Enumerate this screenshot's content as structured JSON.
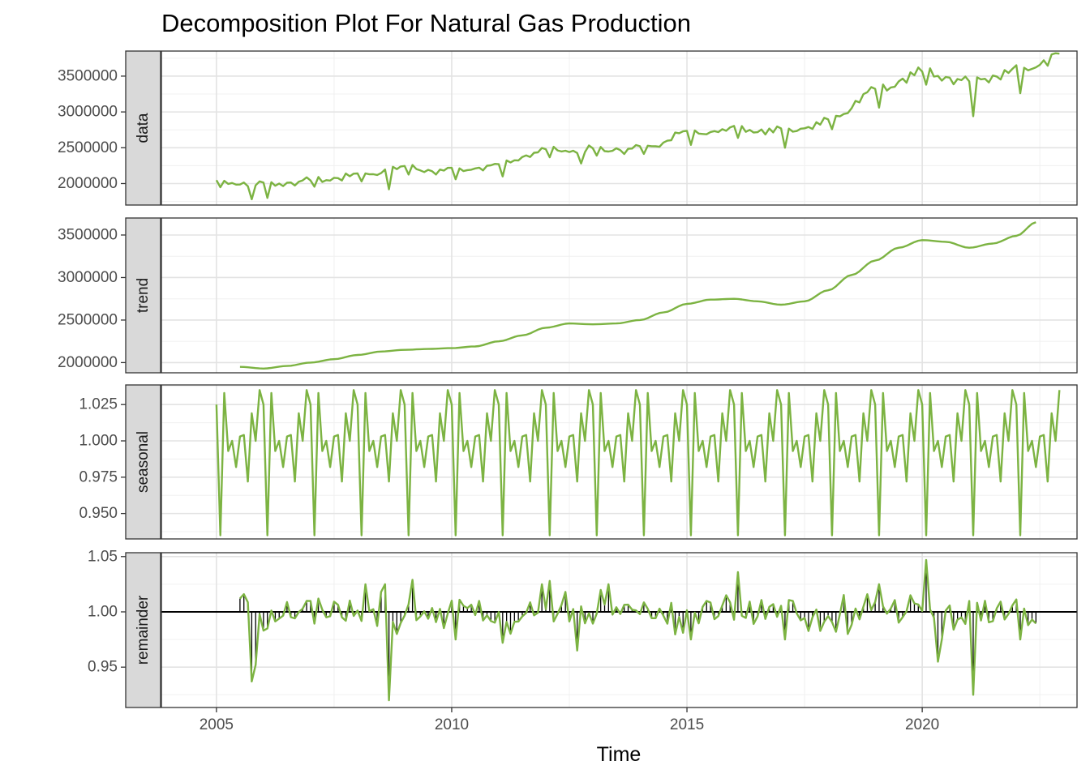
{
  "chart_data": {
    "type": "line",
    "title": "Decomposition Plot For Natural Gas Production",
    "xlabel": "Time",
    "x_range": [
      2003.83,
      2023.29
    ],
    "x_ticks": [
      2005,
      2010,
      2015,
      2020
    ],
    "x_tick_labels": [
      "2005",
      "2010",
      "2015",
      "2020"
    ],
    "grid": true,
    "line_color": "#7cb342",
    "panels": [
      {
        "name": "data",
        "ylim": [
          1700000,
          3850000
        ],
        "y_ticks": [
          2000000,
          2500000,
          3000000,
          3500000
        ],
        "y_tick_labels": [
          "2000000",
          "2500000",
          "3000000",
          "3500000"
        ],
        "x_start": 2005.0,
        "anchors": [
          [
            2005.0,
            2020000
          ],
          [
            2006.0,
            1980000
          ],
          [
            2007.0,
            2030000
          ],
          [
            2008.0,
            2110000
          ],
          [
            2009.0,
            2210000
          ],
          [
            2010.0,
            2170000
          ],
          [
            2011.0,
            2250000
          ],
          [
            2012.0,
            2460000
          ],
          [
            2013.0,
            2460000
          ],
          [
            2014.0,
            2480000
          ],
          [
            2015.0,
            2700000
          ],
          [
            2016.0,
            2760000
          ],
          [
            2017.0,
            2720000
          ],
          [
            2018.0,
            2860000
          ],
          [
            2019.0,
            3280000
          ],
          [
            2020.0,
            3520000
          ],
          [
            2021.0,
            3410000
          ],
          [
            2022.0,
            3570000
          ],
          [
            2022.92,
            3750000
          ]
        ],
        "seasonal_amp": 0.035,
        "dips": [
          [
            2005.75,
            1780000
          ],
          [
            2006.1,
            1800000
          ],
          [
            2008.65,
            1920000
          ],
          [
            2010.1,
            2060000
          ],
          [
            2011.1,
            2100000
          ],
          [
            2012.75,
            2280000
          ],
          [
            2015.1,
            2540000
          ],
          [
            2017.05,
            2500000
          ],
          [
            2019.1,
            3060000
          ],
          [
            2020.1,
            3380000
          ],
          [
            2021.1,
            2940000
          ],
          [
            2022.1,
            3260000
          ]
        ],
        "peaks": [
          [
            2019.95,
            3620000
          ],
          [
            2022.85,
            3820000
          ]
        ]
      },
      {
        "name": "trend",
        "ylim": [
          1880000,
          3700000
        ],
        "y_ticks": [
          2000000,
          2500000,
          3000000,
          3500000
        ],
        "y_tick_labels": [
          "2000000",
          "2500000",
          "3000000",
          "3500000"
        ],
        "x_start": 2005.5,
        "anchors": [
          [
            2005.5,
            1950000
          ],
          [
            2006.0,
            1930000
          ],
          [
            2006.5,
            1960000
          ],
          [
            2007.0,
            2000000
          ],
          [
            2007.5,
            2040000
          ],
          [
            2008.0,
            2090000
          ],
          [
            2008.5,
            2130000
          ],
          [
            2009.0,
            2150000
          ],
          [
            2009.5,
            2160000
          ],
          [
            2010.0,
            2170000
          ],
          [
            2010.5,
            2190000
          ],
          [
            2011.0,
            2250000
          ],
          [
            2011.5,
            2320000
          ],
          [
            2012.0,
            2410000
          ],
          [
            2012.5,
            2460000
          ],
          [
            2013.0,
            2450000
          ],
          [
            2013.5,
            2460000
          ],
          [
            2014.0,
            2500000
          ],
          [
            2014.5,
            2590000
          ],
          [
            2015.0,
            2690000
          ],
          [
            2015.5,
            2740000
          ],
          [
            2016.0,
            2750000
          ],
          [
            2016.5,
            2720000
          ],
          [
            2017.0,
            2680000
          ],
          [
            2017.5,
            2720000
          ],
          [
            2018.0,
            2850000
          ],
          [
            2018.5,
            3030000
          ],
          [
            2019.0,
            3200000
          ],
          [
            2019.5,
            3350000
          ],
          [
            2020.0,
            3440000
          ],
          [
            2020.5,
            3420000
          ],
          [
            2021.0,
            3350000
          ],
          [
            2021.5,
            3400000
          ],
          [
            2022.0,
            3490000
          ],
          [
            2022.42,
            3650000
          ]
        ]
      },
      {
        "name": "seasonal",
        "ylim": [
          0.9325,
          1.0385
        ],
        "y_ticks": [
          0.95,
          0.975,
          1.0,
          1.025
        ],
        "y_tick_labels": [
          "0.950",
          "0.975",
          "1.000",
          "1.025"
        ],
        "x_start": 2005.0,
        "x_end": 2022.92,
        "monthly": [
          1.025,
          0.935,
          1.033,
          0.993,
          1.0,
          0.982,
          1.003,
          1.004,
          0.972,
          1.019,
          1.0,
          1.035
        ]
      },
      {
        "name": "remainder",
        "ylim": [
          0.9135,
          1.0535
        ],
        "y_ticks": [
          0.95,
          1.0,
          1.05
        ],
        "y_tick_labels": [
          "0.95",
          "1.00",
          "1.05"
        ],
        "baseline": 1.0,
        "x_start": 2005.5,
        "x_end": 2022.42,
        "spikes": [
          [
            2005.5,
            1.012
          ],
          [
            2005.58,
            1.016
          ],
          [
            2005.75,
            0.937
          ],
          [
            2005.85,
            0.952
          ],
          [
            2006.1,
            0.985
          ],
          [
            2007.15,
            1.012
          ],
          [
            2008.15,
            1.025
          ],
          [
            2008.5,
            1.018
          ],
          [
            2008.62,
            1.025
          ],
          [
            2008.7,
            0.92
          ],
          [
            2008.8,
            0.98
          ],
          [
            2009.15,
            1.029
          ],
          [
            2010.1,
            0.975
          ],
          [
            2011.1,
            0.972
          ],
          [
            2011.95,
            1.025
          ],
          [
            2012.05,
            1.028
          ],
          [
            2012.7,
            0.965
          ],
          [
            2012.45,
            1.018
          ],
          [
            2013.3,
            1.025
          ],
          [
            2015.05,
            0.975
          ],
          [
            2015.8,
            1.015
          ],
          [
            2016.1,
            1.036
          ],
          [
            2017.05,
            0.975
          ],
          [
            2018.2,
            0.982
          ],
          [
            2018.4,
            0.98
          ],
          [
            2018.85,
            1.016
          ],
          [
            2019.05,
            1.025
          ],
          [
            2019.75,
            1.015
          ],
          [
            2020.05,
            1.047
          ],
          [
            2020.3,
            0.955
          ],
          [
            2020.45,
            0.975
          ],
          [
            2021.1,
            0.925
          ],
          [
            2021.3,
            1.01
          ],
          [
            2022.05,
            0.975
          ],
          [
            2022.25,
            0.988
          ]
        ]
      }
    ]
  }
}
